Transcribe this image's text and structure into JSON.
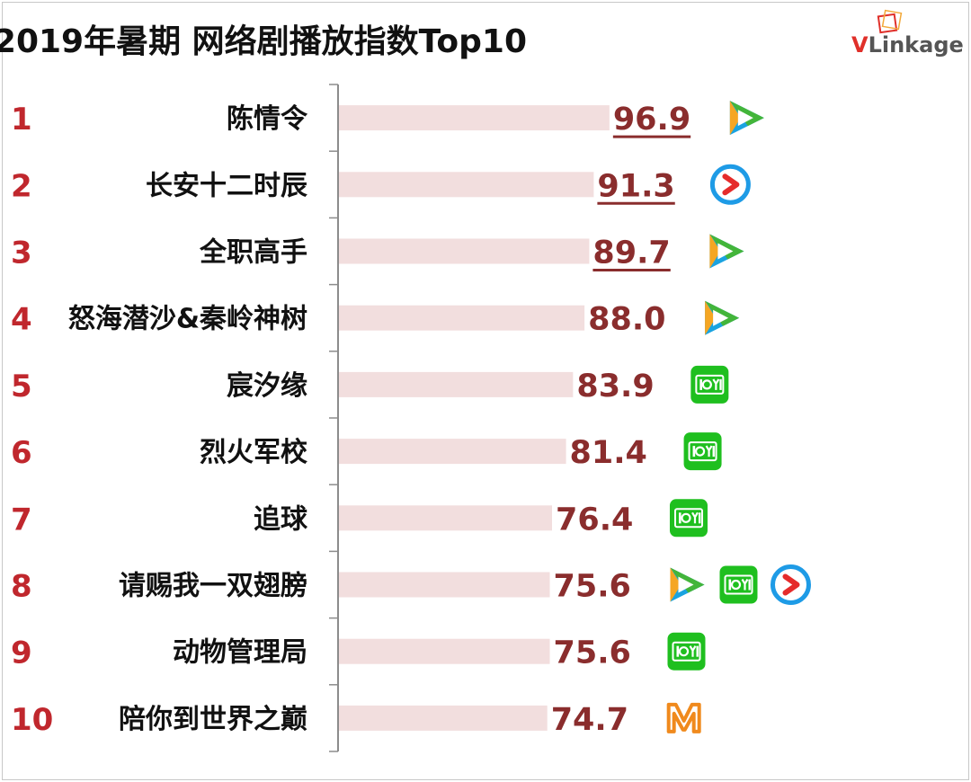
{
  "chart_data": {
    "type": "bar",
    "orientation": "horizontal",
    "title": "2019年暑期 网络剧播放指数Top10",
    "brand": "VLinkage",
    "grid": false,
    "legend": "none",
    "xlim": [
      0,
      100
    ],
    "ranks": [
      "1",
      "2",
      "3",
      "4",
      "5",
      "6",
      "7",
      "8",
      "9",
      "10"
    ],
    "categories": [
      "陈情令",
      "长安十二时辰",
      "全职高手",
      "怒海潜沙&秦岭神树",
      "宸汐缘",
      "烈火军校",
      "追球",
      "请赐我一双翅膀",
      "动物管理局",
      "陪你到世界之巅"
    ],
    "values": [
      96.9,
      91.3,
      89.7,
      88.0,
      83.9,
      81.4,
      76.4,
      75.6,
      75.6,
      74.7
    ],
    "value_labels": [
      "96.9",
      "91.3",
      "89.7",
      "88.0",
      "83.9",
      "81.4",
      "76.4",
      "75.6",
      "75.6",
      "74.7"
    ],
    "underlined_ranks": [
      1,
      2,
      3
    ],
    "platforms": [
      [
        "tencent-video"
      ],
      [
        "youku"
      ],
      [
        "tencent-video"
      ],
      [
        "tencent-video"
      ],
      [
        "iqiyi"
      ],
      [
        "iqiyi"
      ],
      [
        "iqiyi"
      ],
      [
        "tencent-video",
        "iqiyi",
        "youku"
      ],
      [
        "iqiyi"
      ],
      [
        "mango-tv"
      ]
    ],
    "colors": {
      "title": "#111111",
      "rank": "#c0272d",
      "category": "#111111",
      "bar": "#f2dede",
      "value": "#8a2d2d",
      "axis": "#8c8c8c",
      "brand_v": "#e0302a",
      "brand_rest": "#555555",
      "iqiyi": "#1fbf1f",
      "tencent_green": "#43b53a",
      "tencent_blue": "#1aa3e0",
      "tencent_orange": "#f5a623",
      "youku_blue": "#1e9be6",
      "youku_red": "#e52b2b",
      "mango": "#f08a1d"
    }
  }
}
